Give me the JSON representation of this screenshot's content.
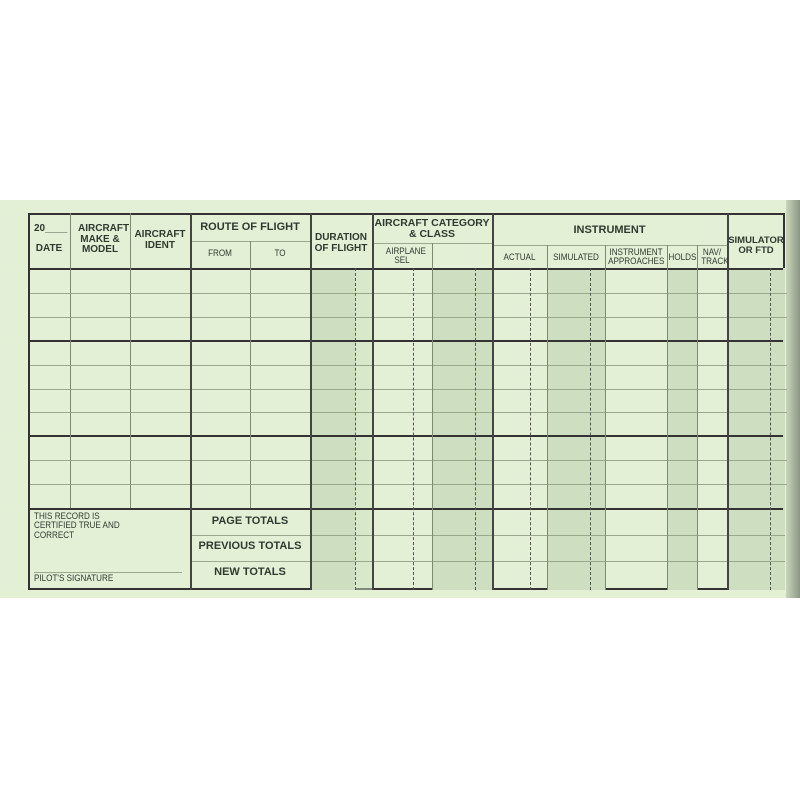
{
  "header": {
    "date_year": "20____",
    "date": "DATE",
    "make_model": "AIRCRAFT MAKE & MODEL",
    "ident": "AIRCRAFT IDENT",
    "route": "ROUTE OF FLIGHT",
    "from": "FROM",
    "to": "TO",
    "duration": "DURATION OF FLIGHT",
    "category": "AIRCRAFT CATEGORY & CLASS",
    "airplane_sel": "AIRPLANE SEL",
    "instrument": "INSTRUMENT",
    "actual": "ACTUAL",
    "simulated": "SIMULATED",
    "approaches": "INSTRUMENT APPROACHES",
    "holds": "HOLDS",
    "nav_track": "NAV/ TRACK",
    "simulator": "SIMULATOR OR FTD"
  },
  "footer": {
    "certify": "THIS RECORD IS CERTIFIED TRUE AND CORRECT",
    "signature": "PILOT'S SIGNATURE",
    "page_totals": "PAGE TOTALS",
    "previous_totals": "PREVIOUS TOTALS",
    "new_totals": "NEW TOTALS"
  },
  "colors": {
    "paper": "#e3f0d6",
    "shade": "#cddfc0",
    "ink": "#333333"
  }
}
